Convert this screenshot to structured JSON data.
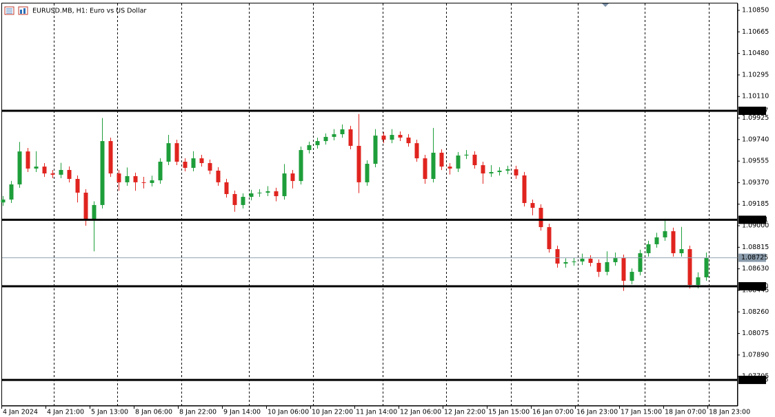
{
  "chart_data": {
    "type": "candlestick",
    "title": "EURUSD.MB, H1:  Euro vs US Dollar",
    "up_color": "#1e9e3a",
    "down_color": "#e0241f",
    "ylim": [
      1.07452,
      1.10909
    ],
    "yticks": [
      {
        "value": 1.1085,
        "label": "1.10850"
      },
      1.10665,
      {
        "value": 1.1048,
        "label": "1.10480"
      },
      1.10295,
      {
        "value": 1.1011,
        "label": "1.10110"
      },
      1.09925,
      {
        "value": 1.0974,
        "label": "1.09740"
      },
      1.09555,
      {
        "value": 1.0937,
        "label": "1.09370"
      },
      1.09185,
      {
        "value": 1.09,
        "label": "1.09000"
      },
      1.08815,
      {
        "value": 1.0863,
        "label": "1.08630"
      },
      1.08445,
      {
        "value": 1.0826,
        "label": "1.08260"
      },
      1.08075,
      {
        "value": 1.0789,
        "label": "1.07890"
      },
      1.07705
    ],
    "levels": [
      {
        "value": 1.09987,
        "label": "1.09987"
      },
      1.09051,
      {
        "value": 1.0848,
        "label": "1.08480"
      },
      1.07676
    ],
    "current_price": 1.08725,
    "x_labels": [
      "4 Jan 2024",
      "4 Jan 21:00",
      "5 Jan 13:00",
      "8 Jan 06:00",
      "8 Jan 22:00",
      "9 Jan 14:00",
      "10 Jan 06:00",
      "10 Jan 22:00",
      "11 Jan 14:00",
      "12 Jan 06:00",
      "12 Jan 22:00",
      "15 Jan 15:00",
      "16 Jan 07:00",
      "16 Jan 23:00",
      "17 Jan 15:00",
      "18 Jan 07:00",
      "18 Jan 23:00"
    ],
    "ohlc": [
      [
        1.092,
        1.09255,
        1.0917,
        1.09225
      ],
      [
        1.09225,
        1.09385,
        1.09195,
        1.09355
      ],
      [
        1.09355,
        1.0972,
        1.09325,
        1.09638
      ],
      [
        1.09638,
        1.09668,
        1.09461,
        1.09491
      ],
      [
        1.09491,
        1.0964,
        1.09461,
        1.09508
      ],
      [
        1.09508,
        1.09538,
        1.09419,
        1.09449
      ],
      [
        1.09449,
        1.09479,
        1.09408,
        1.09438
      ],
      [
        1.09438,
        1.0954,
        1.09408,
        1.09479
      ],
      [
        1.09479,
        1.09509,
        1.09372,
        1.09402
      ],
      [
        1.09402,
        1.09432,
        1.092,
        1.09284
      ],
      [
        1.09284,
        1.09314,
        1.09,
        1.09059
      ],
      [
        1.09059,
        1.0921,
        1.0878,
        1.09178
      ],
      [
        1.09178,
        1.09925,
        1.09148,
        1.09727
      ],
      [
        1.09727,
        1.09757,
        1.09419,
        1.09449
      ],
      [
        1.09449,
        1.09479,
        1.093,
        1.09373
      ],
      [
        1.09373,
        1.095,
        1.09343,
        1.09426
      ],
      [
        1.09426,
        1.09456,
        1.093,
        1.09373
      ],
      [
        1.09373,
        1.0942,
        1.0932,
        1.09367
      ],
      [
        1.09367,
        1.0943,
        1.09337,
        1.0939
      ],
      [
        1.0939,
        1.0958,
        1.0936,
        1.0955
      ],
      [
        1.0955,
        1.0978,
        1.0952,
        1.09709
      ],
      [
        1.09709,
        1.09739,
        1.0952,
        1.0955
      ],
      [
        1.0955,
        1.0958,
        1.09467,
        1.09497
      ],
      [
        1.09497,
        1.0964,
        1.09467,
        1.09579
      ],
      [
        1.09579,
        1.09609,
        1.09508,
        1.09538
      ],
      [
        1.09538,
        1.09568,
        1.09443,
        1.09473
      ],
      [
        1.09473,
        1.09503,
        1.09343,
        1.09373
      ],
      [
        1.09373,
        1.09403,
        1.09242,
        1.09272
      ],
      [
        1.09272,
        1.09302,
        1.0912,
        1.09178
      ],
      [
        1.09178,
        1.09278,
        1.09148,
        1.09248
      ],
      [
        1.09248,
        1.09308,
        1.09218,
        1.09278
      ],
      [
        1.09278,
        1.09314,
        1.09248,
        1.09284
      ],
      [
        1.09284,
        1.0934,
        1.09254,
        1.09296
      ],
      [
        1.09296,
        1.09326,
        1.0921,
        1.09254
      ],
      [
        1.09254,
        1.0953,
        1.09224,
        1.09449
      ],
      [
        1.09449,
        1.09479,
        1.0932,
        1.09384
      ],
      [
        1.09384,
        1.0968,
        1.09354,
        1.0965
      ],
      [
        1.0965,
        1.09722,
        1.0962,
        1.09692
      ],
      [
        1.09692,
        1.09757,
        1.09662,
        1.09727
      ],
      [
        1.09727,
        1.09793,
        1.09697,
        1.09763
      ],
      [
        1.09763,
        1.0983,
        1.09733,
        1.09786
      ],
      [
        1.09786,
        1.0987,
        1.09756,
        1.09828
      ],
      [
        1.09828,
        1.09858,
        1.09656,
        1.09686
      ],
      [
        1.09686,
        1.0996,
        1.0928,
        1.09373
      ],
      [
        1.09373,
        1.09562,
        1.09343,
        1.09532
      ],
      [
        1.09532,
        1.0983,
        1.09502,
        1.09774
      ],
      [
        1.09774,
        1.09804,
        1.09709,
        1.09739
      ],
      [
        1.09739,
        1.0983,
        1.09709,
        1.0978
      ],
      [
        1.0978,
        1.0981,
        1.09727,
        1.09757
      ],
      [
        1.09757,
        1.09787,
        1.09679,
        1.09709
      ],
      [
        1.09709,
        1.09739,
        1.09549,
        1.09579
      ],
      [
        1.09579,
        1.09609,
        1.0936,
        1.09402
      ],
      [
        1.09402,
        1.0984,
        1.09372,
        1.09627
      ],
      [
        1.09627,
        1.09657,
        1.09478,
        1.09508
      ],
      [
        1.09508,
        1.09538,
        1.0944,
        1.09491
      ],
      [
        1.09491,
        1.09633,
        1.09461,
        1.09603
      ],
      [
        1.09603,
        1.0965,
        1.09573,
        1.0961
      ],
      [
        1.0961,
        1.0964,
        1.0949,
        1.0952
      ],
      [
        1.0952,
        1.0955,
        1.0936,
        1.09449
      ],
      [
        1.09449,
        1.0952,
        1.09419,
        1.09461
      ],
      [
        1.09461,
        1.09503,
        1.09431,
        1.09473
      ],
      [
        1.09473,
        1.09515,
        1.09443,
        1.09485
      ],
      [
        1.09485,
        1.09515,
        1.09402,
        1.09432
      ],
      [
        1.09432,
        1.09462,
        1.09165,
        1.09195
      ],
      [
        1.09195,
        1.09225,
        1.0909,
        1.09154
      ],
      [
        1.09154,
        1.09184,
        1.08958,
        1.08988
      ],
      [
        1.08988,
        1.09018,
        1.08769,
        1.08799
      ],
      [
        1.08799,
        1.08829,
        1.0864,
        1.08675
      ],
      [
        1.08675,
        1.0872,
        1.0864,
        1.08687
      ],
      [
        1.08687,
        1.08723,
        1.08657,
        1.08693
      ],
      [
        1.08693,
        1.0876,
        1.08663,
        1.08717
      ],
      [
        1.08717,
        1.08747,
        1.08651,
        1.08681
      ],
      [
        1.08681,
        1.08711,
        1.0856,
        1.08604
      ],
      [
        1.08604,
        1.0878,
        1.08574,
        1.08687
      ],
      [
        1.08687,
        1.0877,
        1.08657,
        1.08722
      ],
      [
        1.08722,
        1.08752,
        1.0844,
        1.08527
      ],
      [
        1.08527,
        1.08634,
        1.08497,
        1.08604
      ],
      [
        1.08604,
        1.08794,
        1.08574,
        1.08764
      ],
      [
        1.08764,
        1.08871,
        1.08734,
        1.08841
      ],
      [
        1.08841,
        1.0894,
        1.08811,
        1.089
      ],
      [
        1.089,
        1.0906,
        1.0887,
        1.08953
      ],
      [
        1.08953,
        1.08983,
        1.08734,
        1.08764
      ],
      [
        1.08764,
        1.0899,
        1.08734,
        1.08799
      ],
      [
        1.08799,
        1.08829,
        1.0846,
        1.08492
      ],
      [
        1.08492,
        1.086,
        1.08462,
        1.08557
      ],
      [
        1.08557,
        1.0877,
        1.08527,
        1.08725
      ]
    ]
  }
}
